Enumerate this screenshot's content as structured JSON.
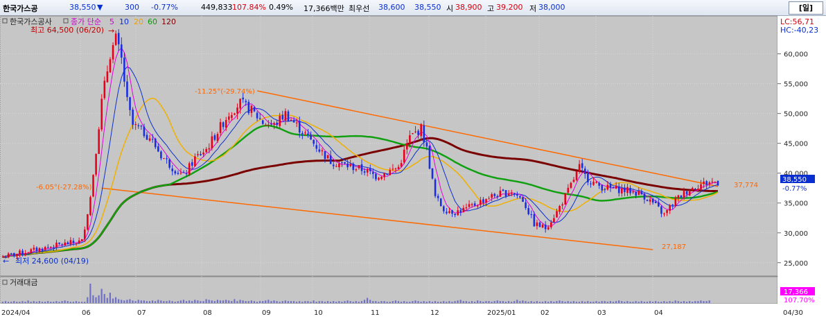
{
  "header": {
    "name": "한국가스공",
    "price": "38,550",
    "arrow": "▼",
    "change": "300",
    "change_pct": "-0.77%",
    "volume": "449,833",
    "volume_ratio": "107.84%",
    "turnover": "0.49%",
    "amount": "17,366백만",
    "priority_label": "최우선",
    "bid": "38,600",
    "ask": "38,550",
    "open_label": "시",
    "open": "38,900",
    "high_label": "고",
    "high": "39,200",
    "low_label": "저",
    "low": "38,000",
    "period": "[일]"
  },
  "legend": {
    "name": "한국가스공사",
    "ma_label": "종가 단순",
    "ma5": "5",
    "ma10": "10",
    "ma20": "20",
    "ma60": "60",
    "ma120": "120"
  },
  "corner": {
    "lc": "LC:56,71",
    "hc": "HC:-40,23"
  },
  "volume_panel": {
    "label": "거래대금",
    "last": "17,366",
    "ratio": "107.70%"
  },
  "chart_data": {
    "type": "candlestick",
    "ylim": [
      23000,
      66000
    ],
    "y_ticks": [
      "60,000",
      "55,000",
      "50,000",
      "45,000",
      "40,000",
      "35,000",
      "30,000",
      "25,000"
    ],
    "x_ticks": [
      "2024/04",
      "06",
      "07",
      "08",
      "09",
      "10",
      "11",
      "12",
      "2025/01",
      "02",
      "03",
      "04",
      "04/30"
    ],
    "current_price_label": "38,550",
    "current_change_label": "-0.77%",
    "annotations": {
      "high": "최고 64,500 (06/20)",
      "low": "최저 24,600 (04/19)",
      "upper_trend": "-11.25°(-29.74%)",
      "lower_trend": "-6.05°(-27.28%)",
      "upper_end": "37,774",
      "lower_end": "27,187"
    },
    "close_path": [
      [
        0,
        26000
      ],
      [
        10,
        27000
      ],
      [
        20,
        28000
      ],
      [
        28,
        28600
      ],
      [
        31,
        36000
      ],
      [
        33,
        44000
      ],
      [
        35,
        52000
      ],
      [
        38,
        60000
      ],
      [
        40,
        62500
      ],
      [
        42,
        59000
      ],
      [
        44,
        52000
      ],
      [
        46,
        48000
      ],
      [
        48,
        47500
      ],
      [
        52,
        46000
      ],
      [
        56,
        43000
      ],
      [
        60,
        41000
      ],
      [
        64,
        39500
      ],
      [
        68,
        42500
      ],
      [
        72,
        44000
      ],
      [
        76,
        47000
      ],
      [
        80,
        50000
      ],
      [
        84,
        51800
      ],
      [
        88,
        50500
      ],
      [
        92,
        48500
      ],
      [
        96,
        48000
      ],
      [
        100,
        50000
      ],
      [
        104,
        48000
      ],
      [
        108,
        46000
      ],
      [
        112,
        44000
      ],
      [
        116,
        42000
      ],
      [
        120,
        41500
      ],
      [
        124,
        41000
      ],
      [
        128,
        40500
      ],
      [
        132,
        39500
      ],
      [
        136,
        40200
      ],
      [
        140,
        41000
      ],
      [
        144,
        46000
      ],
      [
        148,
        47500
      ],
      [
        150,
        44000
      ],
      [
        153,
        36000
      ],
      [
        156,
        34000
      ],
      [
        160,
        33500
      ],
      [
        164,
        34000
      ],
      [
        168,
        35000
      ],
      [
        172,
        36000
      ],
      [
        176,
        36500
      ],
      [
        180,
        37000
      ],
      [
        184,
        35500
      ],
      [
        188,
        31500
      ],
      [
        192,
        30800
      ],
      [
        196,
        33500
      ],
      [
        200,
        37000
      ],
      [
        204,
        41000
      ],
      [
        206,
        39500
      ],
      [
        210,
        38000
      ],
      [
        214,
        37500
      ],
      [
        218,
        37300
      ],
      [
        222,
        37000
      ],
      [
        226,
        36500
      ],
      [
        230,
        35000
      ],
      [
        234,
        33000
      ],
      [
        238,
        35500
      ],
      [
        242,
        37000
      ],
      [
        246,
        38000
      ],
      [
        250,
        38500
      ],
      [
        253,
        38550
      ]
    ],
    "volume_bars": [
      2,
      3,
      2,
      2,
      3,
      2,
      2,
      3,
      2,
      4,
      2,
      3,
      2,
      3,
      2,
      2,
      3,
      2,
      2,
      3,
      2,
      3,
      4,
      3,
      2,
      2,
      3,
      2,
      2,
      2,
      9,
      30,
      12,
      9,
      12,
      22,
      14,
      8,
      16,
      7,
      9,
      6,
      5,
      4,
      5,
      6,
      4,
      3,
      5,
      4,
      4,
      3,
      3,
      4,
      3,
      5,
      4,
      3,
      3,
      4,
      3,
      2,
      3,
      4,
      5,
      3,
      4,
      3,
      5,
      4,
      3,
      3,
      6,
      5,
      4,
      3,
      5,
      4,
      4,
      5,
      4,
      3,
      6,
      3,
      5,
      4,
      3,
      3,
      4,
      3,
      2,
      3,
      3,
      4,
      5,
      3,
      4,
      3,
      2,
      3,
      4,
      3,
      3,
      3,
      2,
      3,
      2,
      3,
      3,
      2,
      4,
      2,
      3,
      3,
      2,
      3,
      2,
      3,
      2,
      3,
      2,
      3,
      4,
      3,
      2,
      3,
      2,
      3,
      5,
      8,
      5,
      3,
      3,
      2,
      3,
      3,
      2,
      2,
      3,
      4,
      3,
      2,
      3,
      2,
      2,
      3,
      4,
      3,
      2,
      3,
      2,
      3,
      2,
      3,
      2,
      2,
      3,
      2,
      3,
      2,
      3,
      4,
      5,
      3,
      3,
      2,
      3,
      2,
      4,
      3,
      2,
      3,
      3,
      2,
      3,
      4,
      3,
      3,
      2,
      3,
      2,
      3,
      5,
      3,
      4,
      3,
      2,
      3,
      2,
      3,
      2,
      2,
      3,
      2,
      3,
      2,
      3,
      4,
      3,
      2,
      3,
      2,
      3,
      2,
      2,
      3,
      2,
      3,
      2,
      2,
      3,
      2,
      3,
      3,
      2,
      3,
      2,
      3,
      4,
      3,
      2,
      3,
      2,
      2,
      3,
      2,
      3,
      2,
      2,
      3,
      2,
      3,
      2,
      2,
      3,
      2,
      3,
      2,
      4,
      3,
      2,
      3,
      2,
      3,
      2,
      3,
      3,
      4,
      3,
      3,
      4
    ]
  }
}
